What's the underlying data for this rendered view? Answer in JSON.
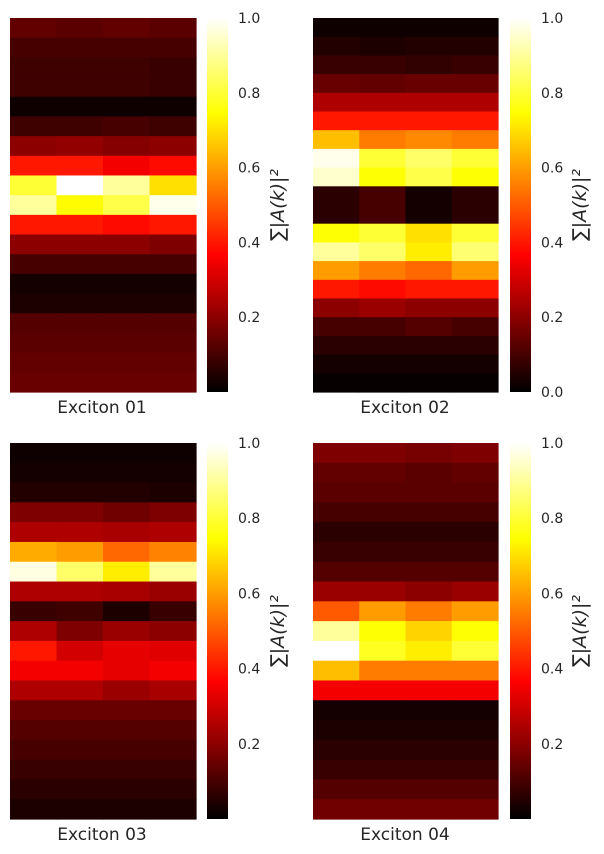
{
  "colorbar_label": "∑|A(k)|²",
  "colormap": [
    "#000000",
    "#ff0000",
    "#ffff00",
    "#ffffff"
  ],
  "chart_data": [
    {
      "type": "heatmap",
      "title": "Exciton 01",
      "colorbar_ticks": [
        "0.2",
        "0.4",
        "0.6",
        "0.8",
        "1.0"
      ],
      "colorbar_tick_values": [
        0.2,
        0.4,
        0.6,
        0.8,
        1.0
      ],
      "vmin": 0.0,
      "vmax": 1.0,
      "values": [
        [
          0.14,
          0.13,
          0.14,
          0.13
        ],
        [
          0.1,
          0.1,
          0.1,
          0.1
        ],
        [
          0.09,
          0.09,
          0.09,
          0.08
        ],
        [
          0.09,
          0.09,
          0.09,
          0.08
        ],
        [
          0.02,
          0.02,
          0.02,
          0.02
        ],
        [
          0.09,
          0.09,
          0.1,
          0.09
        ],
        [
          0.2,
          0.21,
          0.19,
          0.2
        ],
        [
          0.4,
          0.4,
          0.35,
          0.38
        ],
        [
          0.8,
          1.0,
          0.9,
          0.7
        ],
        [
          0.9,
          0.74,
          0.82,
          0.98
        ],
        [
          0.4,
          0.4,
          0.38,
          0.4
        ],
        [
          0.2,
          0.2,
          0.2,
          0.18
        ],
        [
          0.1,
          0.1,
          0.1,
          0.1
        ],
        [
          0.03,
          0.03,
          0.03,
          0.03
        ],
        [
          0.04,
          0.04,
          0.04,
          0.04
        ],
        [
          0.12,
          0.12,
          0.12,
          0.12
        ],
        [
          0.13,
          0.13,
          0.13,
          0.13
        ],
        [
          0.14,
          0.14,
          0.14,
          0.14
        ],
        [
          0.15,
          0.15,
          0.15,
          0.15
        ]
      ]
    },
    {
      "type": "heatmap",
      "title": "Exciton 02",
      "colorbar_ticks": [
        "0.0",
        "0.2",
        "0.4",
        "0.6",
        "0.8",
        "1.0"
      ],
      "colorbar_tick_values": [
        0.0,
        0.2,
        0.4,
        0.6,
        0.8,
        1.0
      ],
      "vmin": 0.0,
      "vmax": 1.0,
      "values": [
        [
          0.02,
          0.02,
          0.02,
          0.02
        ],
        [
          0.05,
          0.04,
          0.05,
          0.05
        ],
        [
          0.08,
          0.08,
          0.07,
          0.08
        ],
        [
          0.15,
          0.14,
          0.15,
          0.15
        ],
        [
          0.25,
          0.25,
          0.25,
          0.25
        ],
        [
          0.4,
          0.4,
          0.4,
          0.4
        ],
        [
          0.65,
          0.55,
          0.57,
          0.55
        ],
        [
          0.98,
          0.8,
          0.85,
          0.8
        ],
        [
          0.95,
          0.75,
          0.82,
          0.75
        ],
        [
          0.06,
          0.1,
          0.03,
          0.06
        ],
        [
          0.06,
          0.1,
          0.03,
          0.06
        ],
        [
          0.75,
          0.8,
          0.7,
          0.8
        ],
        [
          0.9,
          0.85,
          0.72,
          0.86
        ],
        [
          0.6,
          0.55,
          0.52,
          0.6
        ],
        [
          0.4,
          0.38,
          0.4,
          0.4
        ],
        [
          0.2,
          0.22,
          0.2,
          0.2
        ],
        [
          0.1,
          0.1,
          0.12,
          0.1
        ],
        [
          0.06,
          0.06,
          0.06,
          0.06
        ],
        [
          0.03,
          0.03,
          0.03,
          0.03
        ],
        [
          0.01,
          0.01,
          0.01,
          0.01
        ]
      ]
    },
    {
      "type": "heatmap",
      "title": "Exciton 03",
      "colorbar_ticks": [
        "0.2",
        "0.4",
        "0.6",
        "0.8",
        "1.0"
      ],
      "colorbar_tick_values": [
        0.2,
        0.4,
        0.6,
        0.8,
        1.0
      ],
      "vmin": 0.0,
      "vmax": 1.0,
      "values": [
        [
          0.02,
          0.02,
          0.02,
          0.02
        ],
        [
          0.03,
          0.03,
          0.03,
          0.03
        ],
        [
          0.05,
          0.05,
          0.05,
          0.04
        ],
        [
          0.18,
          0.18,
          0.16,
          0.18
        ],
        [
          0.25,
          0.25,
          0.24,
          0.25
        ],
        [
          0.62,
          0.6,
          0.52,
          0.56
        ],
        [
          0.97,
          0.85,
          0.72,
          0.9
        ],
        [
          0.25,
          0.25,
          0.24,
          0.22
        ],
        [
          0.08,
          0.09,
          0.04,
          0.08
        ],
        [
          0.25,
          0.18,
          0.22,
          0.2
        ],
        [
          0.4,
          0.3,
          0.33,
          0.32
        ],
        [
          0.35,
          0.35,
          0.33,
          0.35
        ],
        [
          0.25,
          0.25,
          0.22,
          0.24
        ],
        [
          0.15,
          0.15,
          0.15,
          0.15
        ],
        [
          0.12,
          0.12,
          0.12,
          0.12
        ],
        [
          0.1,
          0.1,
          0.1,
          0.1
        ],
        [
          0.08,
          0.08,
          0.08,
          0.08
        ],
        [
          0.06,
          0.06,
          0.06,
          0.06
        ],
        [
          0.04,
          0.04,
          0.04,
          0.04
        ]
      ]
    },
    {
      "type": "heatmap",
      "title": "Exciton 04",
      "colorbar_ticks": [
        "0.2",
        "0.4",
        "0.6",
        "0.8",
        "1.0"
      ],
      "colorbar_tick_values": [
        0.2,
        0.4,
        0.6,
        0.8,
        1.0
      ],
      "vmin": 0.0,
      "vmax": 1.0,
      "values": [
        [
          0.18,
          0.18,
          0.17,
          0.18
        ],
        [
          0.14,
          0.14,
          0.13,
          0.14
        ],
        [
          0.13,
          0.13,
          0.13,
          0.13
        ],
        [
          0.1,
          0.1,
          0.1,
          0.1
        ],
        [
          0.06,
          0.06,
          0.06,
          0.06
        ],
        [
          0.08,
          0.08,
          0.08,
          0.08
        ],
        [
          0.12,
          0.12,
          0.12,
          0.12
        ],
        [
          0.22,
          0.22,
          0.2,
          0.22
        ],
        [
          0.5,
          0.6,
          0.55,
          0.6
        ],
        [
          0.9,
          0.75,
          0.68,
          0.75
        ],
        [
          1.0,
          0.78,
          0.72,
          0.8
        ],
        [
          0.65,
          0.55,
          0.55,
          0.55
        ],
        [
          0.35,
          0.35,
          0.35,
          0.35
        ],
        [
          0.03,
          0.03,
          0.03,
          0.03
        ],
        [
          0.04,
          0.04,
          0.04,
          0.04
        ],
        [
          0.06,
          0.06,
          0.06,
          0.06
        ],
        [
          0.08,
          0.08,
          0.08,
          0.08
        ],
        [
          0.12,
          0.12,
          0.12,
          0.12
        ],
        [
          0.16,
          0.16,
          0.16,
          0.16
        ]
      ]
    }
  ]
}
